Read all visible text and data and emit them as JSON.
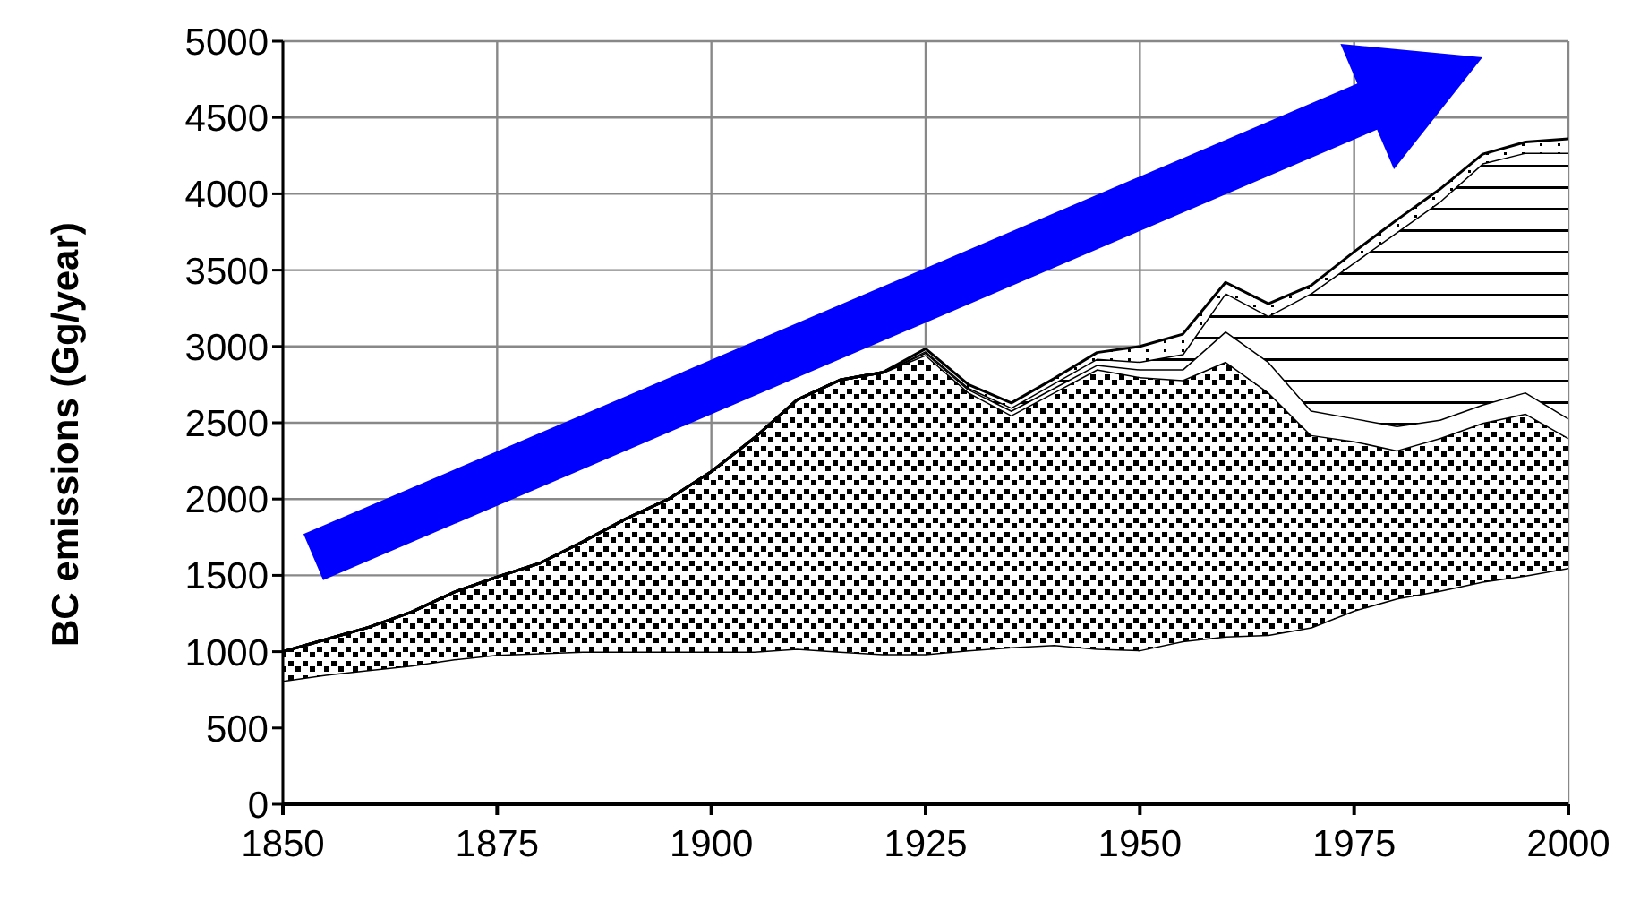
{
  "chart_data": {
    "type": "area",
    "stacked": true,
    "ylabel": "BC emissions (Gg/year)",
    "x": [
      1850,
      1855,
      1860,
      1865,
      1870,
      1875,
      1880,
      1885,
      1890,
      1895,
      1900,
      1905,
      1910,
      1915,
      1920,
      1925,
      1930,
      1935,
      1940,
      1945,
      1950,
      1955,
      1960,
      1965,
      1970,
      1975,
      1980,
      1985,
      1990,
      1995,
      2000
    ],
    "series": [
      {
        "color": "#ffffff",
        "values": [
          810,
          850,
          880,
          910,
          950,
          980,
          990,
          1000,
          1000,
          1000,
          1000,
          1000,
          1020,
          1000,
          985,
          985,
          1010,
          1030,
          1045,
          1020,
          1010,
          1070,
          1100,
          1110,
          1160,
          1270,
          1350,
          1400,
          1460,
          1500,
          1550
        ]
      },
      {
        "color": "#000000",
        "values": [
          190,
          230,
          280,
          350,
          440,
          510,
          590,
          720,
          870,
          1000,
          1180,
          1400,
          1630,
          1780,
          1845,
          1960,
          1690,
          1520,
          1655,
          1830,
          1790,
          1710,
          1800,
          1590,
          1260,
          1110,
          970,
          1000,
          1040,
          1060,
          850
        ]
      },
      {
        "color": "#ffffff",
        "values": [
          0,
          0,
          0,
          0,
          0,
          0,
          0,
          0,
          0,
          0,
          0,
          0,
          0,
          0,
          0,
          15,
          20,
          30,
          30,
          30,
          50,
          70,
          200,
          200,
          160,
          150,
          160,
          120,
          120,
          140,
          130
        ]
      },
      {
        "color": "#000000",
        "values": [
          0,
          0,
          0,
          0,
          0,
          0,
          0,
          0,
          0,
          0,
          0,
          0,
          0,
          0,
          0,
          10,
          10,
          20,
          30,
          40,
          50,
          100,
          250,
          300,
          770,
          1020,
          1270,
          1430,
          1580,
          1570,
          1740
        ]
      },
      {
        "color": "#000000",
        "values": [
          0,
          0,
          0,
          0,
          0,
          0,
          0,
          0,
          0,
          0,
          0,
          0,
          0,
          0,
          0,
          15,
          20,
          30,
          30,
          40,
          100,
          130,
          70,
          80,
          50,
          70,
          80,
          80,
          60,
          70,
          90
        ]
      }
    ],
    "xlim": [
      1850,
      2000
    ],
    "xticks": [
      1850,
      1875,
      1900,
      1925,
      1950,
      1975,
      2000
    ],
    "ylim": [
      0,
      5000
    ],
    "yticks": [
      0,
      500,
      1000,
      1500,
      2000,
      2500,
      3000,
      3500,
      4000,
      4500,
      5000
    ],
    "grid": true
  }
}
